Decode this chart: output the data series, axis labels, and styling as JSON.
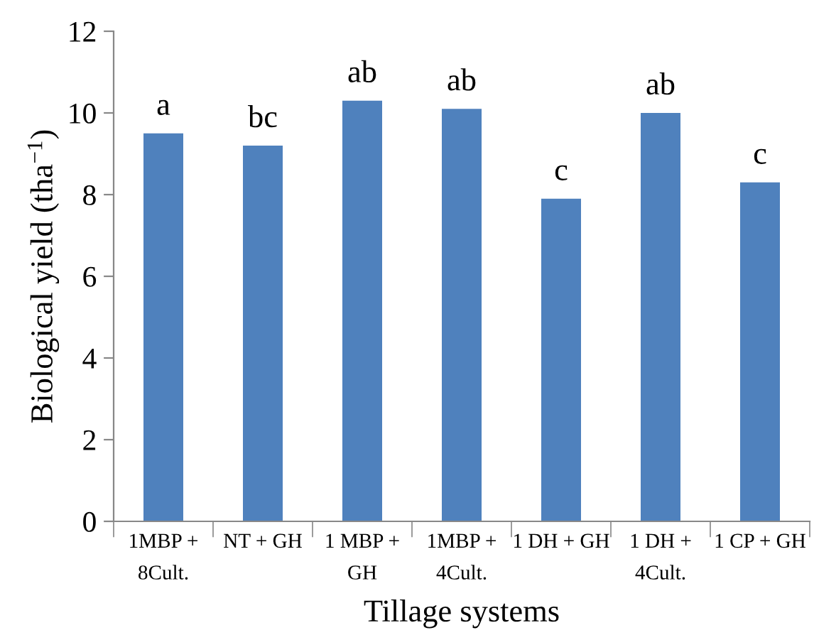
{
  "chart_data": {
    "type": "bar",
    "xlabel": "Tillage systems",
    "ylabel": "Biological yield (tha$^{−1}$)",
    "categories": [
      "1MBP +\n8Cult.",
      "NT + GH",
      "1 MBP +\nGH",
      "1MBP +\n4Cult.",
      "1 DH + GH",
      "1 DH +\n4Cult.",
      "1 CP + GH"
    ],
    "values": [
      9.5,
      9.2,
      10.3,
      10.1,
      7.9,
      10.0,
      8.3
    ],
    "color": "#4f81bd",
    "ylim": [
      0,
      12
    ],
    "yticks": [
      0,
      2,
      4,
      6,
      8,
      10,
      12
    ],
    "grid": false,
    "legend": false,
    "annotations": [
      {
        "text": "a",
        "x": "1MBP +\n8Cult.",
        "y": 9.5
      },
      {
        "text": "bc",
        "x": "NT + GH",
        "y": 9.2
      },
      {
        "text": "ab",
        "x": "1 MBP +\nGH",
        "y": 10.3
      },
      {
        "text": "ab",
        "x": "1MBP +\n4Cult.",
        "y": 10.1
      },
      {
        "text": "c",
        "x": "1 DH + GH",
        "y": 7.9
      },
      {
        "text": "ab",
        "x": "1 DH +\n4Cult.",
        "y": 10.0
      },
      {
        "text": "c",
        "x": "1 CP + GH",
        "y": 8.3
      }
    ]
  }
}
